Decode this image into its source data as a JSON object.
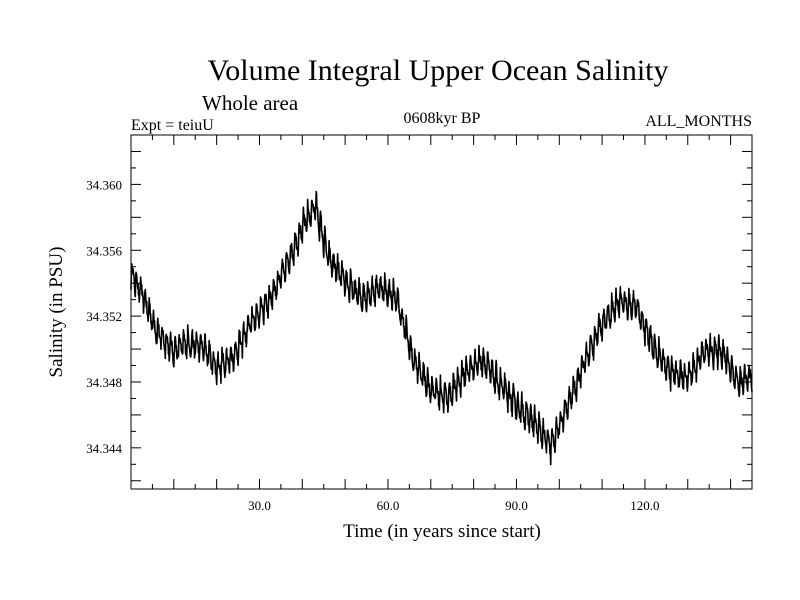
{
  "chart_data": {
    "type": "line",
    "title": "Volume Integral Upper Ocean Salinity",
    "subtitle": "Whole area",
    "left_label": "Expt = teiuU",
    "center_label": "0608kyr BP",
    "right_label": "ALL_MONTHS",
    "xlabel": "Time (in years since start)",
    "ylabel": "Salinity (in PSU)",
    "xlim": [
      0,
      145
    ],
    "ylim": [
      34.3415,
      34.363
    ],
    "x_ticks": [
      30.0,
      60.0,
      90.0,
      120.0
    ],
    "x_tick_labels": [
      "30.0",
      "60.0",
      "90.0",
      "120.0"
    ],
    "y_ticks": [
      34.344,
      34.348,
      34.352,
      34.356,
      34.36
    ],
    "y_tick_labels": [
      "34.344",
      "34.348",
      "34.352",
      "34.356",
      "34.360"
    ],
    "seasonal_amplitude": 0.0016,
    "samples_per_year": 12,
    "trend": {
      "x": [
        0,
        3,
        6,
        10,
        13,
        17,
        20,
        24,
        28,
        32,
        36,
        40,
        43,
        46,
        50,
        54,
        58,
        62,
        66,
        70,
        74,
        78,
        82,
        86,
        90,
        94,
        98,
        102,
        106,
        110,
        114,
        118,
        122,
        126,
        130,
        134,
        138,
        142,
        145
      ],
      "y": [
        34.3546,
        34.353,
        34.351,
        34.3498,
        34.3503,
        34.35,
        34.3488,
        34.3495,
        34.3515,
        34.3528,
        34.3548,
        34.3573,
        34.3587,
        34.3555,
        34.354,
        34.353,
        34.3537,
        34.353,
        34.3492,
        34.3475,
        34.347,
        34.3485,
        34.3493,
        34.3478,
        34.3465,
        34.3455,
        34.344,
        34.3465,
        34.3492,
        34.3515,
        34.3528,
        34.3525,
        34.35,
        34.3485,
        34.3482,
        34.3498,
        34.3498,
        34.3478,
        34.3483
      ]
    },
    "series": [
      {
        "name": "Salinity",
        "color": "#000000"
      }
    ]
  }
}
